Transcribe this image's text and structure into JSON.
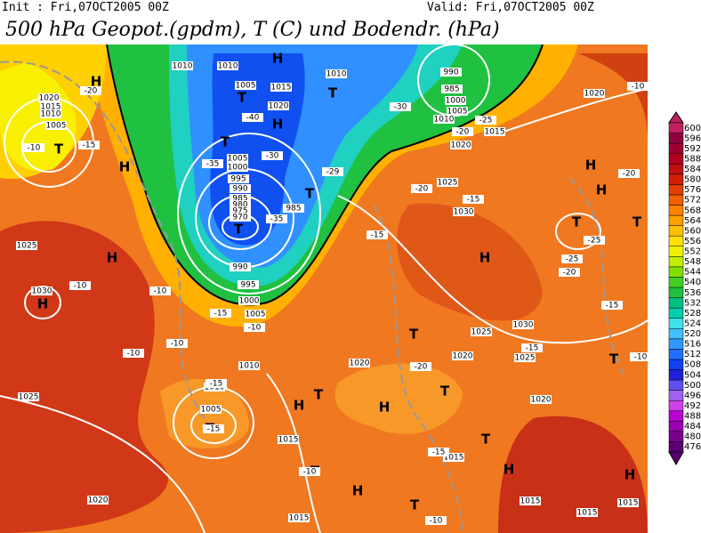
{
  "header": {
    "init": "Init : Fri,07OCT2005 00Z",
    "valid": "Valid: Fri,07OCT2005 00Z",
    "title": "500 hPa Geopot.(gpdm), T (C) und Bodendr. (hPa)"
  },
  "colorbar": {
    "ticks": [
      476,
      480,
      484,
      488,
      492,
      496,
      500,
      504,
      508,
      512,
      516,
      520,
      524,
      528,
      532,
      536,
      540,
      544,
      548,
      552,
      556,
      560,
      564,
      568,
      572,
      576,
      580,
      584,
      588,
      592,
      596,
      600
    ],
    "colors": [
      "#5a0070",
      "#7a0090",
      "#9a00b0",
      "#b800d0",
      "#d040e8",
      "#a060f0",
      "#6050f0",
      "#2020d8",
      "#1040f0",
      "#2070ff",
      "#3098ff",
      "#40c0ff",
      "#40e0e8",
      "#00d0b0",
      "#00c080",
      "#20c040",
      "#40d020",
      "#80e000",
      "#c0f000",
      "#f0f000",
      "#ffe000",
      "#ffc000",
      "#ffa000",
      "#ff8000",
      "#f06000",
      "#e04000",
      "#d02000",
      "#c01010",
      "#b00020",
      "#a00030",
      "#900040",
      "#c02060"
    ]
  },
  "map": {
    "labels": [
      "H",
      "H",
      "T",
      "T",
      "H",
      "T",
      "H",
      "T",
      "T",
      "T",
      "H",
      "H",
      "T",
      "H",
      "T",
      "H",
      "T",
      "H",
      "T",
      "T",
      "H",
      "H",
      "T",
      "H",
      "H",
      "T",
      "T",
      "T",
      "H",
      "T",
      "1010",
      "1010",
      "1005",
      "1015",
      "1020",
      "1010",
      "990",
      "985",
      "1000",
      "1005",
      "1010",
      "1015",
      "1020",
      "1020",
      "1020",
      "1015",
      "1010",
      "1005",
      "1025",
      "1030",
      "1025",
      "1030",
      "1005",
      "1000",
      "995",
      "990",
      "985",
      "980",
      "975",
      "970",
      "985",
      "990",
      "995",
      "1000",
      "1005",
      "1010",
      "1010",
      "1005",
      "1025",
      "1020",
      "1020",
      "1025",
      "1030",
      "1025",
      "1020",
      "1015",
      "1015",
      "1015",
      "1020",
      "1015",
      "1015",
      "1015",
      "-40",
      "-35",
      "-30",
      "-29",
      "-35",
      "-20",
      "-15",
      "-10",
      "-30",
      "-25",
      "-20",
      "-20",
      "-15",
      "-15",
      "-10",
      "-10",
      "-10",
      "-15",
      "-10",
      "-10",
      "-15",
      "-15",
      "-20",
      "-15",
      "-10",
      "-10",
      "-25",
      "-25",
      "-20",
      "-15",
      "-15",
      "-20",
      "-10",
      "-10"
    ]
  }
}
